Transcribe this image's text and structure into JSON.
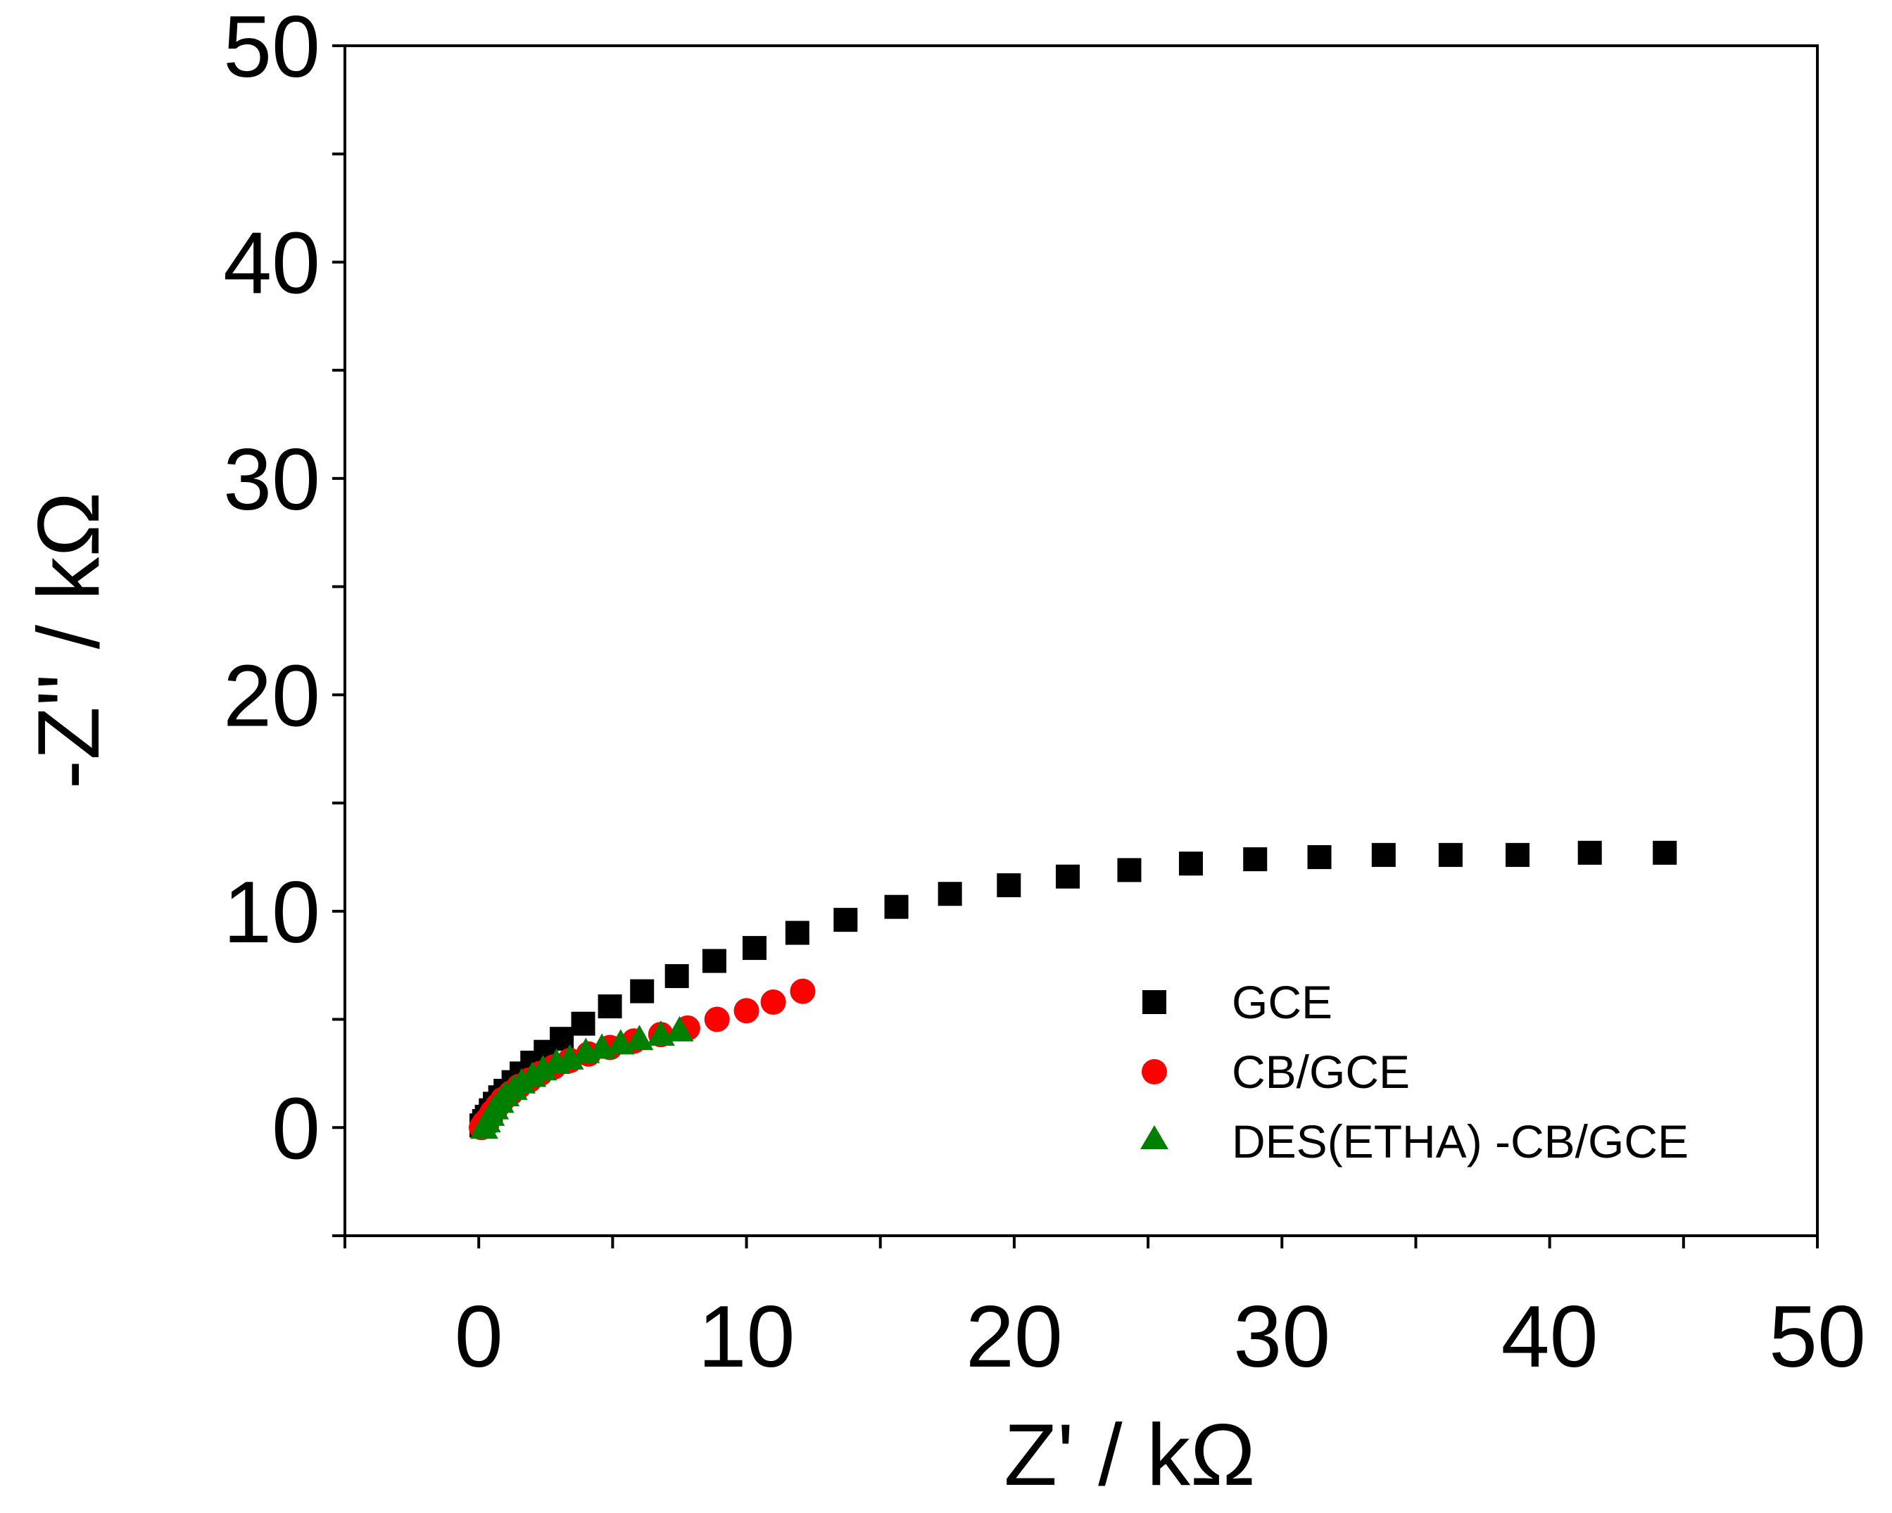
{
  "chart_data": {
    "type": "scatter",
    "title": "",
    "xlabel": "Z' / kΩ",
    "ylabel": "-Z'' / kΩ",
    "xlim": [
      -5,
      50
    ],
    "ylim": [
      -5,
      50
    ],
    "x_ticks": [
      0,
      10,
      20,
      30,
      40,
      50
    ],
    "y_ticks": [
      0,
      10,
      20,
      30,
      40,
      50
    ],
    "x_tick_labels": [
      "0",
      "10",
      "20",
      "30",
      "40",
      "50"
    ],
    "y_tick_labels": [
      "0",
      "10",
      "20",
      "30",
      "40",
      "50"
    ],
    "grid": false,
    "legend_position": "lower-right",
    "series": [
      {
        "name": "GCE",
        "marker": "square",
        "color": "#000000",
        "x": [
          0.1,
          0.2,
          0.3,
          0.45,
          0.6,
          0.8,
          1.0,
          1.3,
          1.6,
          2.0,
          2.5,
          3.1,
          3.9,
          4.9,
          6.1,
          7.4,
          8.8,
          10.3,
          11.9,
          13.7,
          15.6,
          17.6,
          19.8,
          22.0,
          24.3,
          26.6,
          29.0,
          31.4,
          33.8,
          36.3,
          38.8,
          41.5,
          44.3
        ],
        "y": [
          0.1,
          0.3,
          0.5,
          0.8,
          1.1,
          1.4,
          1.7,
          2.1,
          2.5,
          3.0,
          3.5,
          4.1,
          4.8,
          5.6,
          6.3,
          7.0,
          7.7,
          8.3,
          9.0,
          9.6,
          10.2,
          10.8,
          11.2,
          11.6,
          11.9,
          12.2,
          12.4,
          12.5,
          12.6,
          12.6,
          12.6,
          12.7,
          12.7
        ]
      },
      {
        "name": "CB/GCE",
        "marker": "circle",
        "color": "#ff0000",
        "x": [
          0.1,
          0.2,
          0.35,
          0.5,
          0.7,
          0.9,
          1.2,
          1.5,
          1.9,
          2.3,
          2.8,
          3.4,
          4.1,
          4.9,
          5.8,
          6.8,
          7.8,
          8.9,
          10.0,
          11.0,
          12.1
        ],
        "y": [
          0.0,
          0.2,
          0.4,
          0.7,
          1.0,
          1.3,
          1.6,
          1.9,
          2.2,
          2.5,
          2.8,
          3.1,
          3.4,
          3.7,
          4.0,
          4.3,
          4.6,
          5.0,
          5.4,
          5.8,
          6.3
        ]
      },
      {
        "name": "DES(ETHA) -CB/GCE",
        "marker": "triangle",
        "color": "#008000",
        "x": [
          0.2,
          0.3,
          0.45,
          0.6,
          0.8,
          1.0,
          1.3,
          1.6,
          2.0,
          2.4,
          2.9,
          3.4,
          4.0,
          4.6,
          5.3,
          6.0,
          6.8,
          7.5
        ],
        "y": [
          0.0,
          0.3,
          0.6,
          0.9,
          1.2,
          1.5,
          1.8,
          2.1,
          2.4,
          2.7,
          3.0,
          3.2,
          3.5,
          3.7,
          3.9,
          4.1,
          4.3,
          4.5
        ]
      }
    ]
  }
}
